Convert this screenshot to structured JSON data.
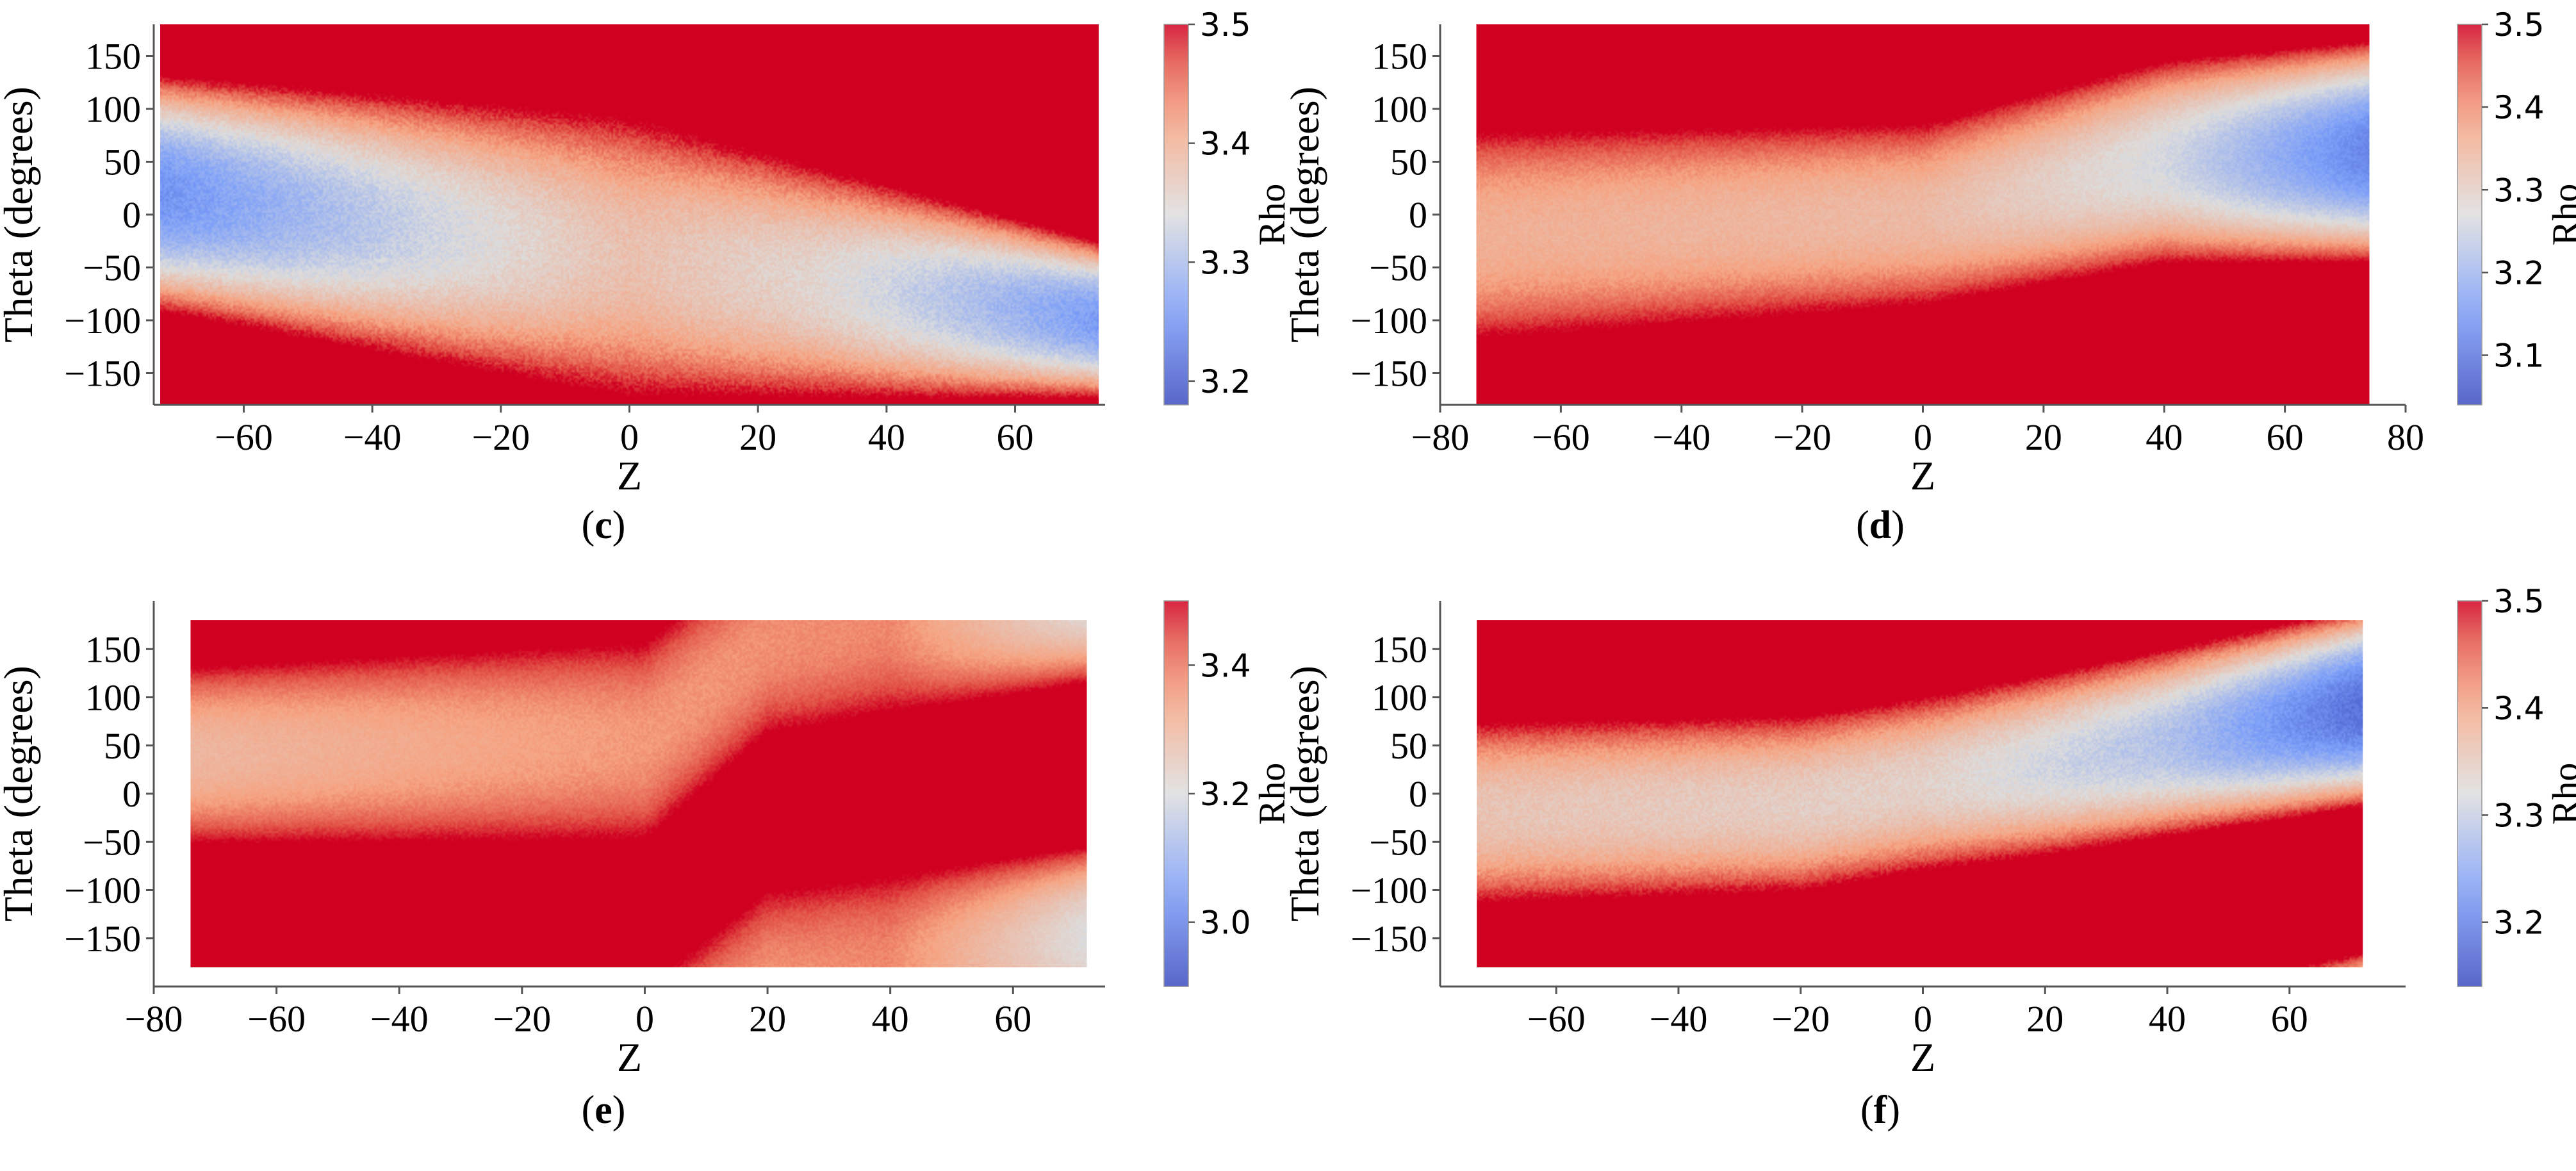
{
  "chart_data": [
    {
      "id": "c",
      "type": "heatmap",
      "panel_label": "c",
      "xlabel": "Z",
      "ylabel": "Theta (degrees)",
      "xlim": [
        -74,
        74
      ],
      "ylim": [
        -180,
        180
      ],
      "xticks": [
        -60,
        -40,
        -20,
        0,
        20,
        40,
        60
      ],
      "yticks": [
        150,
        100,
        50,
        0,
        -50,
        -100,
        -150
      ],
      "data_xrange": [
        -73,
        73
      ],
      "data_yrange": [
        -180,
        180
      ],
      "colorbar": {
        "label": "Rho",
        "min": 3.18,
        "max": 3.5,
        "ticks": [
          3.5,
          3.4,
          3.3,
          3.2
        ]
      },
      "band_center": [
        [
          -73,
          20
        ],
        [
          0,
          -40
        ],
        [
          73,
          -100
        ]
      ],
      "band_halfwidth": [
        [
          -73,
          120
        ],
        [
          0,
          150
        ],
        [
          73,
          80
        ]
      ],
      "band_min_value": [
        [
          -73,
          3.25
        ],
        [
          -30,
          3.33
        ],
        [
          0,
          3.38
        ],
        [
          30,
          3.35
        ],
        [
          73,
          3.26
        ]
      ]
    },
    {
      "id": "d",
      "type": "heatmap",
      "panel_label": "d",
      "xlabel": "Z",
      "ylabel": "Theta (degrees)",
      "xlim": [
        -80,
        80
      ],
      "ylim": [
        -180,
        180
      ],
      "xticks": [
        -80,
        -60,
        -40,
        -20,
        0,
        20,
        40,
        60,
        80
      ],
      "yticks": [
        150,
        100,
        50,
        0,
        -50,
        -100,
        -150
      ],
      "data_xrange": [
        -74,
        74
      ],
      "data_yrange": [
        -180,
        180
      ],
      "colorbar": {
        "label": "Rho",
        "min": 3.04,
        "max": 3.5,
        "ticks": [
          3.5,
          3.4,
          3.3,
          3.2,
          3.1
        ]
      },
      "band_center": [
        [
          -74,
          -20
        ],
        [
          0,
          0
        ],
        [
          40,
          50
        ],
        [
          74,
          60
        ]
      ],
      "band_halfwidth": [
        [
          -74,
          110
        ],
        [
          0,
          95
        ],
        [
          74,
          110
        ]
      ],
      "band_min_value": [
        [
          -74,
          3.36
        ],
        [
          0,
          3.34
        ],
        [
          40,
          3.26
        ],
        [
          74,
          3.12
        ]
      ]
    },
    {
      "id": "e",
      "type": "heatmap",
      "panel_label": "e",
      "xlabel": "Z",
      "ylabel": "Theta (degrees)",
      "xlim": [
        -80,
        75
      ],
      "ylim": [
        -200,
        200
      ],
      "xticks": [
        -80,
        -60,
        -40,
        -20,
        0,
        20,
        40,
        60
      ],
      "yticks": [
        150,
        100,
        50,
        0,
        -50,
        -100,
        -150
      ],
      "data_xrange": [
        -74,
        72
      ],
      "data_yrange": [
        -180,
        180
      ],
      "colorbar": {
        "label": "Rho",
        "min": 2.9,
        "max": 3.5,
        "ticks": [
          3.4,
          3.2,
          3.0
        ]
      },
      "band_center": [
        [
          -74,
          40
        ],
        [
          0,
          55
        ],
        [
          20,
          160
        ],
        [
          72,
          210
        ]
      ],
      "band_halfwidth": [
        [
          -74,
          100
        ],
        [
          0,
          115
        ],
        [
          72,
          100
        ]
      ],
      "band_min_value": [
        [
          -74,
          3.3
        ],
        [
          0,
          3.36
        ],
        [
          40,
          3.38
        ],
        [
          72,
          3.2
        ]
      ]
    },
    {
      "id": "f",
      "type": "heatmap",
      "panel_label": "f",
      "xlabel": "Z",
      "ylabel": "Theta (degrees)",
      "xlim": [
        -79,
        79
      ],
      "ylim": [
        -200,
        200
      ],
      "xticks": [
        -60,
        -40,
        -20,
        0,
        20,
        40,
        60
      ],
      "yticks": [
        150,
        100,
        50,
        0,
        -50,
        -100,
        -150
      ],
      "data_xrange": [
        -73,
        72
      ],
      "data_yrange": [
        -180,
        180
      ],
      "colorbar": {
        "label": "Rho",
        "min": 3.14,
        "max": 3.5,
        "ticks": [
          3.5,
          3.4,
          3.3,
          3.2
        ]
      },
      "band_center": [
        [
          -73,
          -20
        ],
        [
          -20,
          -10
        ],
        [
          20,
          30
        ],
        [
          72,
          90
        ]
      ],
      "band_halfwidth": [
        [
          -73,
          105
        ],
        [
          0,
          100
        ],
        [
          72,
          110
        ]
      ],
      "band_min_value": [
        [
          -73,
          3.36
        ],
        [
          0,
          3.34
        ],
        [
          40,
          3.28
        ],
        [
          72,
          3.18
        ]
      ]
    }
  ]
}
